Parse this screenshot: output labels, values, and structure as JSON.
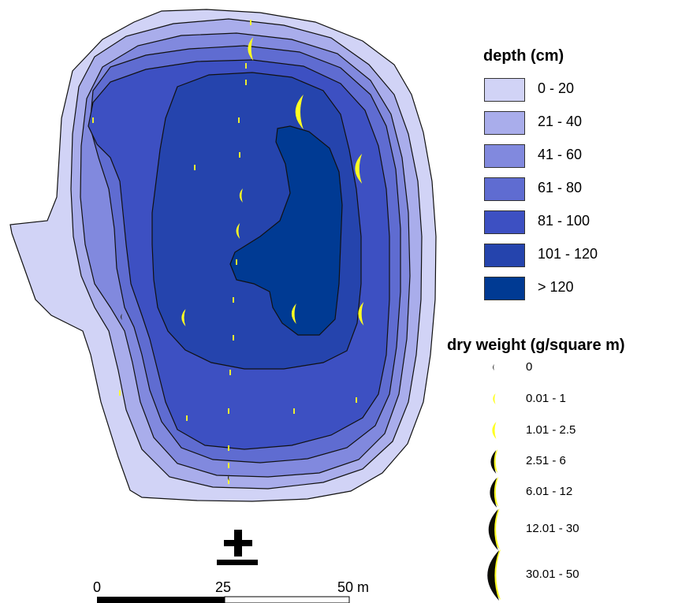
{
  "legend_depth": {
    "title": "depth (cm)",
    "classes": [
      {
        "label": "0 - 20",
        "color": "#d1d3f6"
      },
      {
        "label": "21 - 40",
        "color": "#a9adeb"
      },
      {
        "label": "41 - 60",
        "color": "#8189de"
      },
      {
        "label": "61 - 80",
        "color": "#5f6cd1"
      },
      {
        "label": "81 - 100",
        "color": "#3d50c2"
      },
      {
        "label": "101 - 120",
        "color": "#2544ad"
      },
      {
        "label": "> 120",
        "color": "#003a93"
      }
    ]
  },
  "legend_dry_weight": {
    "title": "dry weight (g/square m)",
    "classes": [
      {
        "label": "0"
      },
      {
        "label": "0.01 - 1"
      },
      {
        "label": "1.01 - 2.5"
      },
      {
        "label": "2.51 - 6"
      },
      {
        "label": "6.01 - 12"
      },
      {
        "label": "12.01 - 30"
      },
      {
        "label": "30.01 - 50"
      }
    ],
    "symbol_color": "#ffff22"
  },
  "scale_bar": {
    "labels": [
      "0",
      "25",
      "50 m"
    ]
  },
  "north_arrow": {
    "icon": "north-arrow-icon"
  }
}
